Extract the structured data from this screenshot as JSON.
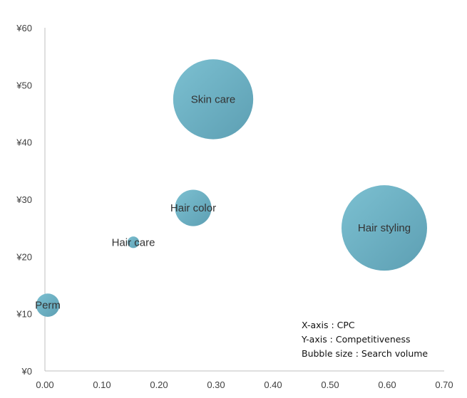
{
  "chart_data": {
    "type": "scatter",
    "subtype": "bubble",
    "xlim": [
      0,
      0.7
    ],
    "ylim": [
      0,
      60
    ],
    "x_ticks": [
      "0.00",
      "0.10",
      "0.20",
      "0.30",
      "0.40",
      "0.50",
      "0.60",
      "0.70"
    ],
    "y_ticks": [
      "¥0",
      "¥10",
      "¥20",
      "¥30",
      "¥40",
      "¥50",
      "¥60"
    ],
    "grid": false,
    "bubble_color": "#6fb3c6",
    "points": [
      {
        "label": "Perm",
        "x": 0.005,
        "y": 11.5,
        "size": 36
      },
      {
        "label": "Hair care",
        "x": 0.155,
        "y": 22.5,
        "size": 9
      },
      {
        "label": "Hair color",
        "x": 0.26,
        "y": 28.5,
        "size": 88
      },
      {
        "label": "Skin care",
        "x": 0.295,
        "y": 47.5,
        "size": 424
      },
      {
        "label": "Hair styling",
        "x": 0.595,
        "y": 25,
        "size": 484
      }
    ],
    "annotations": [
      "X-axis : CPC",
      "Y-axis : Competitiveness",
      "Bubble size : Search volume"
    ]
  }
}
